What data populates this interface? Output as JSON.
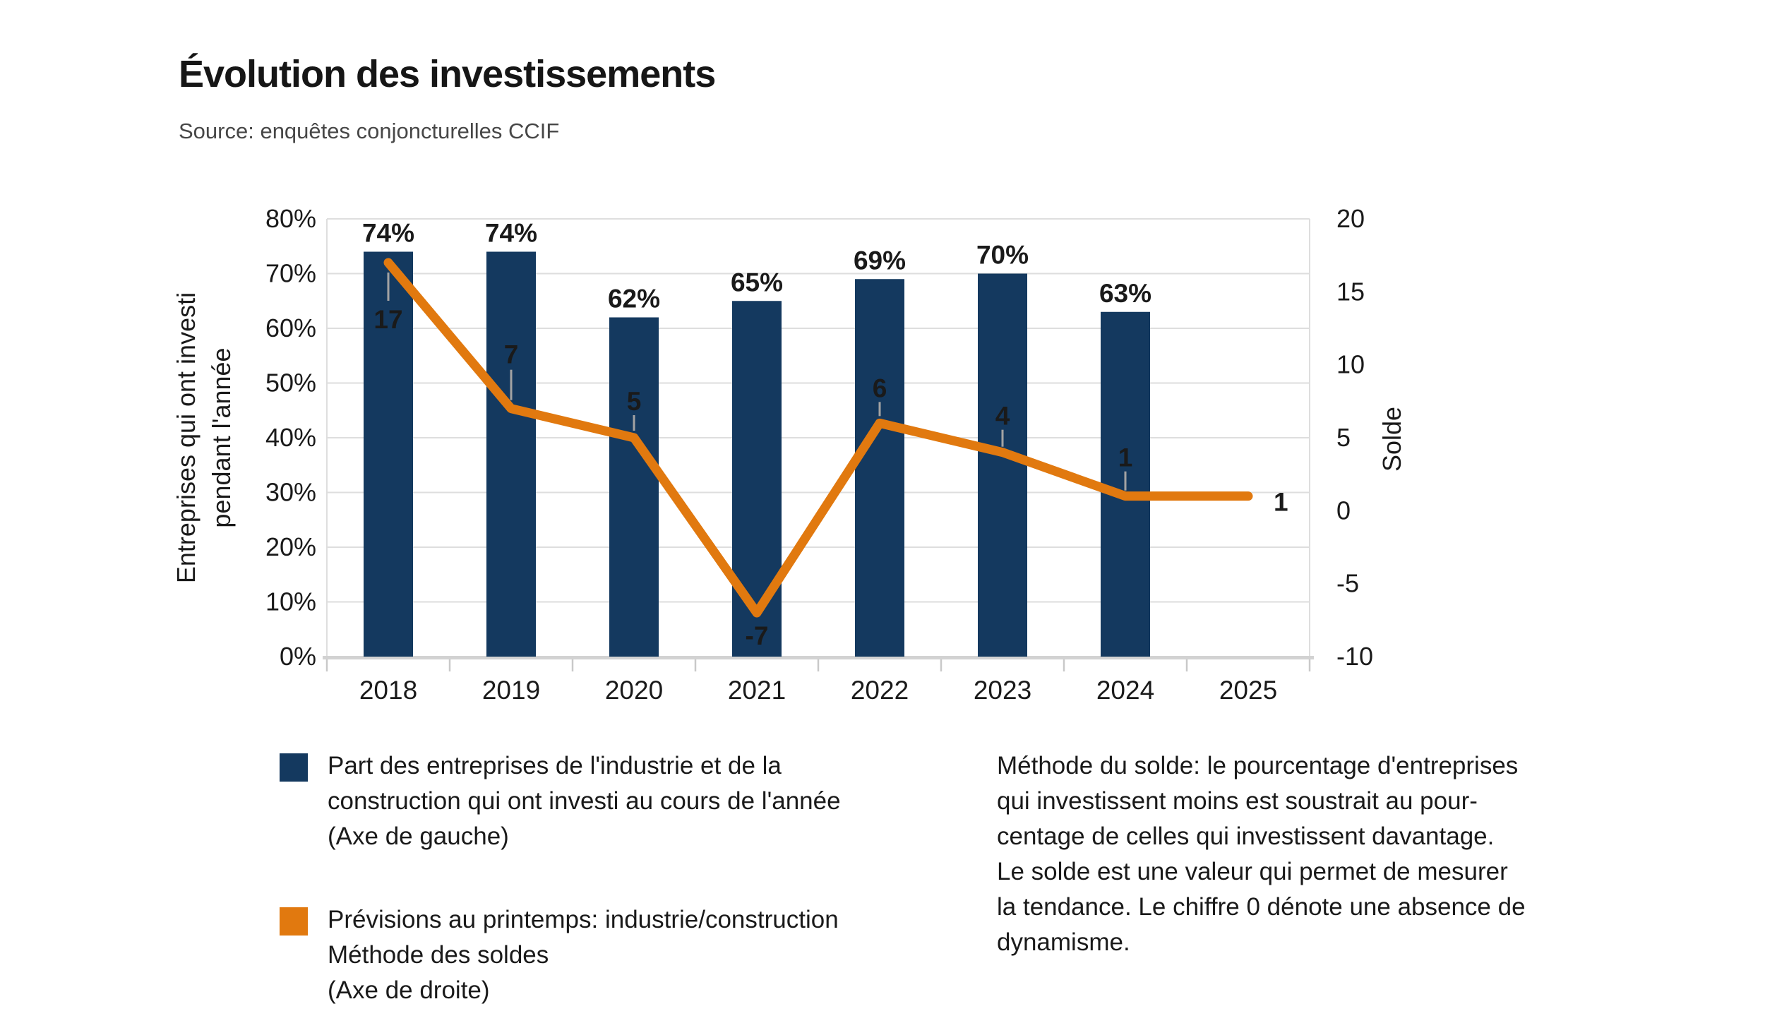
{
  "title": "Évolution des investissements",
  "source": "Source: enquêtes conjoncturelles CCIF",
  "chart_data": {
    "type": "bar+line combo",
    "categories": [
      "2018",
      "2019",
      "2020",
      "2021",
      "2022",
      "2023",
      "2024",
      "2025"
    ],
    "series": [
      {
        "name": "Part des entreprises de l'industrie et de la construction qui ont investi au cours de l'année (Axe de gauche)",
        "type": "bar",
        "axis": "left",
        "values": [
          74,
          74,
          62,
          65,
          69,
          70,
          63,
          null
        ],
        "value_labels": [
          "74%",
          "74%",
          "62%",
          "65%",
          "69%",
          "70%",
          "63%",
          null
        ]
      },
      {
        "name": "Prévisions au printemps: industrie/construction Méthode des soldes (Axe de droite)",
        "type": "line",
        "axis": "right",
        "values": [
          17,
          7,
          5,
          -7,
          6,
          4,
          1,
          1
        ],
        "value_labels": [
          "17",
          "7",
          "5",
          "-7",
          "6",
          "4",
          "1",
          "1"
        ]
      }
    ],
    "left_axis": {
      "title": "Entreprises qui ont investi pendant l'année",
      "title_lines": [
        "Entreprises qui ont investi",
        "pendant l'année"
      ],
      "min": 0,
      "max": 80,
      "step": 10,
      "tick_labels": [
        "80%",
        "70%",
        "60%",
        "50%",
        "40%",
        "30%",
        "20%",
        "10%",
        "0%"
      ],
      "tick_values": [
        80,
        70,
        60,
        50,
        40,
        30,
        20,
        10,
        0
      ]
    },
    "right_axis": {
      "title": "Solde",
      "min": -10,
      "max": 20,
      "step": 5,
      "tick_labels": [
        "20",
        "15",
        "10",
        "5",
        "0",
        "-5",
        "-10"
      ],
      "tick_values": [
        20,
        15,
        10,
        5,
        0,
        -5,
        -10
      ]
    },
    "grid": "horizontal gridlines every 10% of left axis",
    "legend_position": "bottom-left"
  },
  "legend": {
    "items": [
      {
        "color": "#14395F",
        "lines": [
          "Part des entreprises de l'industrie et de la",
          "construction qui ont investi au cours de l'année",
          "(Axe de gauche)"
        ]
      },
      {
        "color": "#E1790F",
        "lines": [
          "Prévisions au printemps: industrie/construction",
          "Méthode des soldes",
          "(Axe de droite)"
        ]
      }
    ]
  },
  "note": {
    "lines": [
      "Méthode du solde: le pourcentage d'entreprises",
      "qui investissent moins est soustrait au pour-",
      "centage de celles qui investissent davantage.",
      "Le solde est une valeur qui permet de mesurer",
      "la tendance. Le chiffre 0 dénote une absence de",
      "dynamisme."
    ]
  },
  "colors": {
    "bar": "#14395F",
    "line": "#E1790F",
    "text": "#1A1A1A",
    "source_text": "#474747",
    "grid": "#DEDEDE",
    "axis_line": "#D2D2D2",
    "tick": "#C9C9C9",
    "leader": "#A3A3A3",
    "label_on_bar": "#FFFFFF"
  }
}
